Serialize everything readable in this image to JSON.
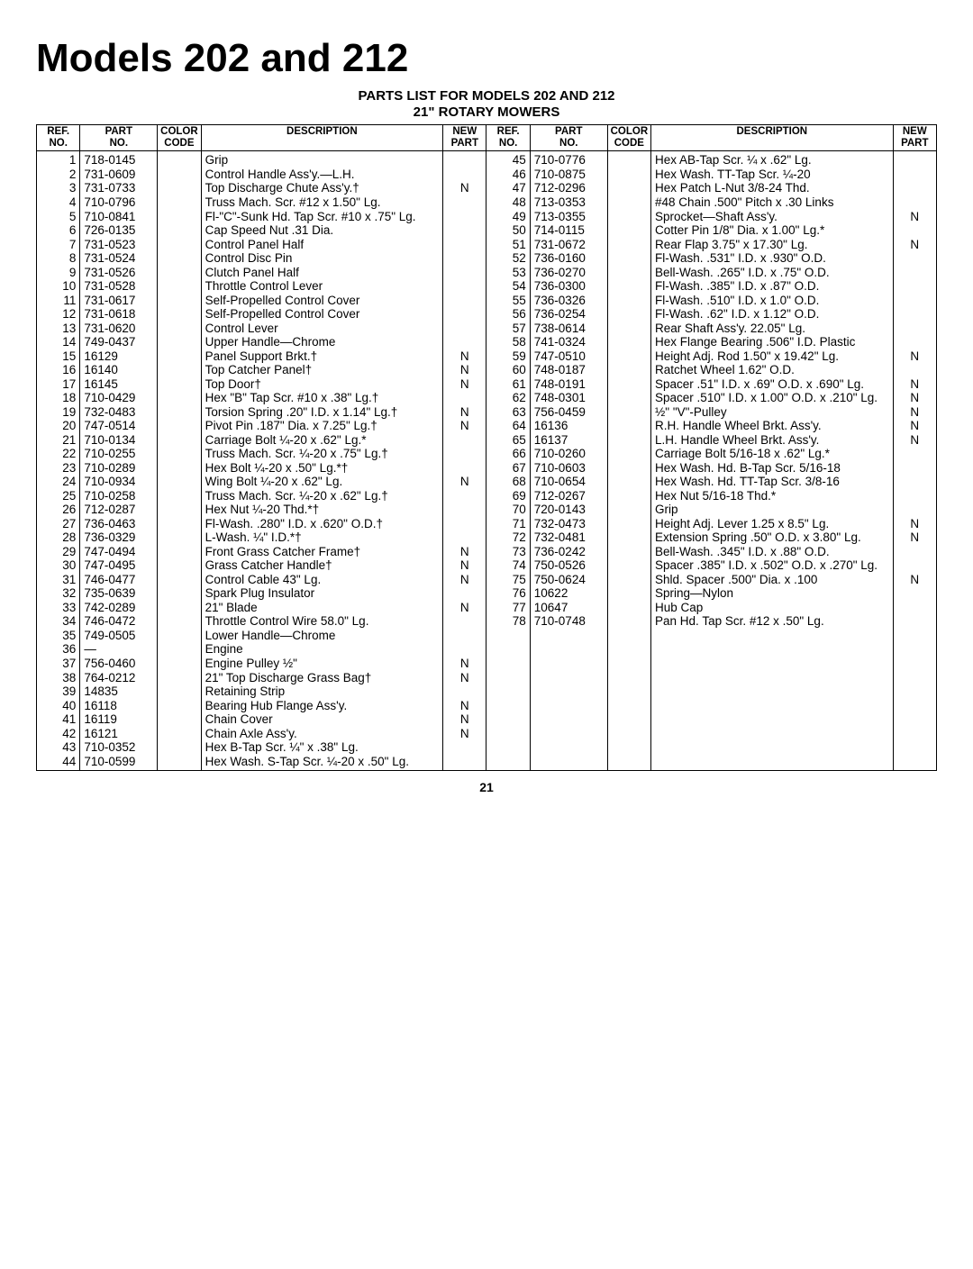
{
  "title": "Models 202 and 212",
  "subtitle1": "PARTS LIST FOR MODELS 202 AND 212",
  "subtitle2": "21\" ROTARY MOWERS",
  "page_number": "21",
  "headers": {
    "ref": "REF.\nNO.",
    "part": "PART\nNO.",
    "color": "COLOR\nCODE",
    "desc": "DESCRIPTION",
    "newpart": "NEW\nPART",
    "ref2": "REF.\nNO.",
    "part2": "PART\nNO.",
    "color2": "COLOR\nCODE",
    "desc2": "DESCRIPTION",
    "newpart2": "NEW\nPART"
  },
  "left": [
    {
      "ref": "1",
      "part": "718-0145",
      "desc": "Grip",
      "new": ""
    },
    {
      "ref": "2",
      "part": "731-0609",
      "desc": "Control Handle Ass'y.—L.H.",
      "new": ""
    },
    {
      "ref": "3",
      "part": "731-0733",
      "desc": "Top Discharge Chute Ass'y.†",
      "new": "N"
    },
    {
      "ref": "4",
      "part": "710-0796",
      "desc": "Truss Mach. Scr. #12 x 1.50\" Lg.",
      "new": ""
    },
    {
      "ref": "5",
      "part": "710-0841",
      "desc": "Fl-\"C\"-Sunk Hd. Tap Scr. #10 x .75\" Lg.",
      "new": ""
    },
    {
      "ref": "6",
      "part": "726-0135",
      "desc": "Cap Speed Nut .31 Dia.",
      "new": ""
    },
    {
      "ref": "7",
      "part": "731-0523",
      "desc": "Control Panel Half",
      "new": ""
    },
    {
      "ref": "8",
      "part": "731-0524",
      "desc": "Control Disc Pin",
      "new": ""
    },
    {
      "ref": "9",
      "part": "731-0526",
      "desc": "Clutch Panel Half",
      "new": ""
    },
    {
      "ref": "10",
      "part": "731-0528",
      "desc": "Throttle Control Lever",
      "new": ""
    },
    {
      "ref": "11",
      "part": "731-0617",
      "desc": "Self-Propelled Control Cover",
      "new": ""
    },
    {
      "ref": "12",
      "part": "731-0618",
      "desc": "Self-Propelled Control Cover",
      "new": ""
    },
    {
      "ref": "13",
      "part": "731-0620",
      "desc": "Control Lever",
      "new": ""
    },
    {
      "ref": "14",
      "part": "749-0437",
      "desc": "Upper Handle—Chrome",
      "new": ""
    },
    {
      "ref": "15",
      "part": "16129",
      "desc": "Panel Support Brkt.†",
      "new": "N"
    },
    {
      "ref": "16",
      "part": "16140",
      "desc": "Top Catcher Panel†",
      "new": "N"
    },
    {
      "ref": "17",
      "part": "16145",
      "desc": "Top Door†",
      "new": "N"
    },
    {
      "ref": "18",
      "part": "710-0429",
      "desc": "Hex \"B\" Tap Scr. #10 x .38\" Lg.†",
      "new": ""
    },
    {
      "ref": "19",
      "part": "732-0483",
      "desc": "Torsion Spring .20\" I.D. x 1.14\" Lg.†",
      "new": "N"
    },
    {
      "ref": "20",
      "part": "747-0514",
      "desc": "Pivot Pin .187\" Dia. x 7.25\" Lg.†",
      "new": "N"
    },
    {
      "ref": "21",
      "part": "710-0134",
      "desc": "Carriage Bolt ¼-20 x .62\" Lg.*",
      "new": ""
    },
    {
      "ref": "22",
      "part": "710-0255",
      "desc": "Truss Mach. Scr. ¼-20 x .75\" Lg.†",
      "new": ""
    },
    {
      "ref": "23",
      "part": "710-0289",
      "desc": "Hex Bolt ¼-20 x .50\" Lg.*†",
      "new": ""
    },
    {
      "ref": "24",
      "part": "710-0934",
      "desc": "Wing Bolt ¼-20 x .62\" Lg.",
      "new": "N"
    },
    {
      "ref": "25",
      "part": "710-0258",
      "desc": "Truss Mach. Scr. ¼-20 x .62\" Lg.†",
      "new": ""
    },
    {
      "ref": "26",
      "part": "712-0287",
      "desc": "Hex Nut ¼-20 Thd.*†",
      "new": ""
    },
    {
      "ref": "27",
      "part": "736-0463",
      "desc": "Fl-Wash. .280\" I.D. x .620\" O.D.†",
      "new": ""
    },
    {
      "ref": "28",
      "part": "736-0329",
      "desc": "L-Wash. ¼\" I.D.*†",
      "new": ""
    },
    {
      "ref": "29",
      "part": "747-0494",
      "desc": "Front Grass Catcher Frame†",
      "new": "N"
    },
    {
      "ref": "30",
      "part": "747-0495",
      "desc": "Grass Catcher Handle†",
      "new": "N"
    },
    {
      "ref": "31",
      "part": "746-0477",
      "desc": "Control Cable 43\" Lg.",
      "new": "N"
    },
    {
      "ref": "32",
      "part": "735-0639",
      "desc": "Spark Plug Insulator",
      "new": ""
    },
    {
      "ref": "33",
      "part": "742-0289",
      "desc": "21\" Blade",
      "new": "N"
    },
    {
      "ref": "34",
      "part": "746-0472",
      "desc": "Throttle Control Wire 58.0\" Lg.",
      "new": ""
    },
    {
      "ref": "35",
      "part": "749-0505",
      "desc": "Lower Handle—Chrome",
      "new": ""
    },
    {
      "ref": "36",
      "part": "—",
      "desc": "Engine",
      "new": ""
    },
    {
      "ref": "37",
      "part": "756-0460",
      "desc": "Engine Pulley ½\"",
      "new": "N"
    },
    {
      "ref": "38",
      "part": "764-0212",
      "desc": "21\" Top Discharge Grass Bag†",
      "new": "N"
    },
    {
      "ref": "39",
      "part": "14835",
      "desc": "Retaining Strip",
      "new": ""
    },
    {
      "ref": "40",
      "part": "16118",
      "desc": "Bearing Hub Flange Ass'y.",
      "new": "N"
    },
    {
      "ref": "41",
      "part": "16119",
      "desc": "Chain Cover",
      "new": "N"
    },
    {
      "ref": "42",
      "part": "16121",
      "desc": "Chain Axle Ass'y.",
      "new": "N"
    },
    {
      "ref": "43",
      "part": "710-0352",
      "desc": "Hex B-Tap Scr. ¼\" x .38\" Lg.",
      "new": ""
    },
    {
      "ref": "44",
      "part": "710-0599",
      "desc": "Hex Wash. S-Tap Scr. ¼-20 x .50\" Lg.",
      "new": ""
    }
  ],
  "right": [
    {
      "ref": "45",
      "part": "710-0776",
      "desc": "Hex AB-Tap Scr. ¼ x .62\" Lg.",
      "new": ""
    },
    {
      "ref": "46",
      "part": "710-0875",
      "desc": "Hex Wash. TT-Tap Scr. ¼-20",
      "new": ""
    },
    {
      "ref": "47",
      "part": "712-0296",
      "desc": "Hex Patch L-Nut 3/8-24 Thd.",
      "new": ""
    },
    {
      "ref": "48",
      "part": "713-0353",
      "desc": "#48 Chain .500\" Pitch x .30 Links",
      "new": ""
    },
    {
      "ref": "49",
      "part": "713-0355",
      "desc": "Sprocket—Shaft Ass'y.",
      "new": "N"
    },
    {
      "ref": "50",
      "part": "714-0115",
      "desc": "Cotter Pin 1/8\" Dia. x 1.00\" Lg.*",
      "new": ""
    },
    {
      "ref": "51",
      "part": "731-0672",
      "desc": "Rear Flap 3.75\" x 17.30\" Lg.",
      "new": "N"
    },
    {
      "ref": "52",
      "part": "736-0160",
      "desc": "Fl-Wash. .531\" I.D. x .930\" O.D.",
      "new": ""
    },
    {
      "ref": "53",
      "part": "736-0270",
      "desc": "Bell-Wash. .265\" I.D. x .75\" O.D.",
      "new": ""
    },
    {
      "ref": "54",
      "part": "736-0300",
      "desc": "Fl-Wash. .385\" I.D. x .87\" O.D.",
      "new": ""
    },
    {
      "ref": "55",
      "part": "736-0326",
      "desc": "Fl-Wash. .510\" I.D. x 1.0\" O.D.",
      "new": ""
    },
    {
      "ref": "56",
      "part": "736-0254",
      "desc": "Fl-Wash. .62\" I.D. x 1.12\" O.D.",
      "new": ""
    },
    {
      "ref": "57",
      "part": "738-0614",
      "desc": "Rear Shaft Ass'y. 22.05\" Lg.",
      "new": ""
    },
    {
      "ref": "58",
      "part": "741-0324",
      "desc": "Hex Flange Bearing .506\" I.D. Plastic",
      "new": ""
    },
    {
      "ref": "59",
      "part": "747-0510",
      "desc": "Height Adj. Rod 1.50\" x 19.42\" Lg.",
      "new": "N"
    },
    {
      "ref": "60",
      "part": "748-0187",
      "desc": "Ratchet Wheel 1.62\" O.D.",
      "new": ""
    },
    {
      "ref": "61",
      "part": "748-0191",
      "desc": "Spacer .51\" I.D. x .69\" O.D. x .690\" Lg.",
      "new": "N"
    },
    {
      "ref": "62",
      "part": "748-0301",
      "desc": "Spacer .510\" I.D. x 1.00\" O.D. x .210\" Lg.",
      "new": "N"
    },
    {
      "ref": "63",
      "part": "756-0459",
      "desc": "½\" \"V\"-Pulley",
      "new": "N"
    },
    {
      "ref": "64",
      "part": "16136",
      "desc": "R.H. Handle Wheel Brkt. Ass'y.",
      "new": "N"
    },
    {
      "ref": "65",
      "part": "16137",
      "desc": "L.H. Handle Wheel Brkt. Ass'y.",
      "new": "N"
    },
    {
      "ref": "66",
      "part": "710-0260",
      "desc": "Carriage Bolt 5/16-18 x .62\" Lg.*",
      "new": ""
    },
    {
      "ref": "67",
      "part": "710-0603",
      "desc": "Hex Wash. Hd. B-Tap Scr. 5/16-18",
      "new": ""
    },
    {
      "ref": "68",
      "part": "710-0654",
      "desc": "Hex Wash. Hd. TT-Tap Scr. 3/8-16",
      "new": ""
    },
    {
      "ref": "69",
      "part": "712-0267",
      "desc": "Hex Nut 5/16-18 Thd.*",
      "new": ""
    },
    {
      "ref": "70",
      "part": "720-0143",
      "desc": "Grip",
      "new": ""
    },
    {
      "ref": "71",
      "part": "732-0473",
      "desc": "Height Adj. Lever 1.25 x 8.5\" Lg.",
      "new": "N"
    },
    {
      "ref": "72",
      "part": "732-0481",
      "desc": "Extension Spring .50\" O.D. x 3.80\" Lg.",
      "new": "N"
    },
    {
      "ref": "73",
      "part": "736-0242",
      "desc": "Bell-Wash. .345\" I.D. x .88\" O.D.",
      "new": ""
    },
    {
      "ref": "74",
      "part": "750-0526",
      "desc": "Spacer .385\" I.D. x .502\" O.D. x .270\" Lg.",
      "new": ""
    },
    {
      "ref": "75",
      "part": "750-0624",
      "desc": "Shld. Spacer .500\" Dia. x .100",
      "new": "N"
    },
    {
      "ref": "76",
      "part": "10622",
      "desc": "Spring—Nylon",
      "new": ""
    },
    {
      "ref": "77",
      "part": "10647",
      "desc": "Hub Cap",
      "new": ""
    },
    {
      "ref": "78",
      "part": "710-0748",
      "desc": "Pan Hd. Tap Scr. #12 x .50\" Lg.",
      "new": ""
    }
  ]
}
